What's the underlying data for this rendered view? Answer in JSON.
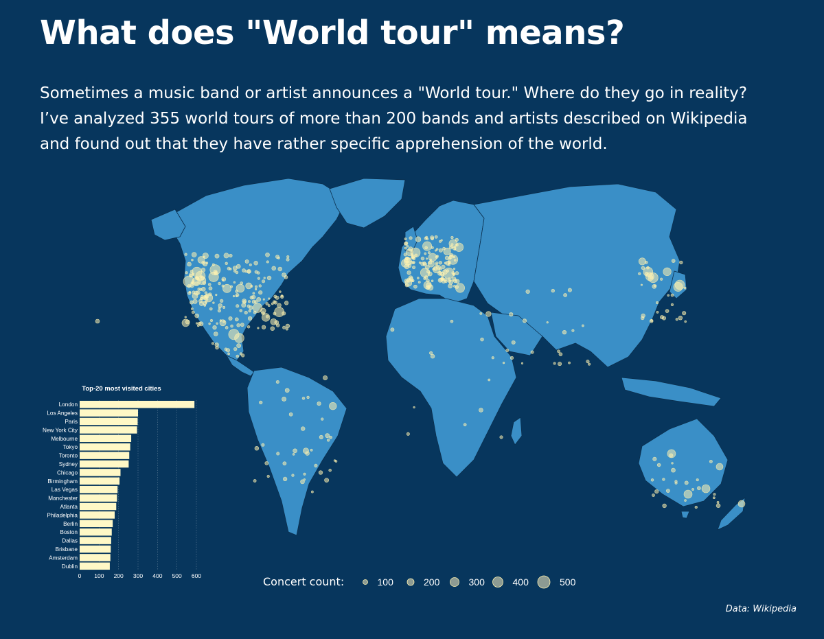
{
  "page": {
    "title": "What does \"World tour\" means?",
    "intro_lines": [
      "Sometimes a music band or artist announces a \"World tour.\" Where do they go in reality?",
      "I’ve analyzed 355 world tours of more than 200 bands and artists described on Wikipedia",
      "and found out that they have rather specific apprehension of the world."
    ],
    "source": "Data: Wikipedia"
  },
  "colors": {
    "background": "#07365d",
    "land": "#3a8fc7",
    "marker": "#fff3b0",
    "bar": "#fff8c6"
  },
  "legend": {
    "label": "Concert count:",
    "values": [
      100,
      200,
      300,
      400,
      500
    ],
    "value_labels": [
      "100",
      "200",
      "300",
      "400",
      "500"
    ]
  },
  "chart_data": {
    "type": "bar",
    "orientation": "horizontal",
    "title": "Top-20 most visited cities",
    "categories": [
      "London",
      "Los Angeles",
      "Paris",
      "New York City",
      "Melbourne",
      "Tokyo",
      "Toronto",
      "Sydney",
      "Chicago",
      "Birmingham",
      "Las Vegas",
      "Manchester",
      "Atlanta",
      "Philadelphia",
      "Berlin",
      "Boston",
      "Dallas",
      "Brisbane",
      "Amsterdam",
      "Dublin"
    ],
    "values": [
      590,
      300,
      298,
      295,
      265,
      260,
      255,
      252,
      210,
      205,
      195,
      192,
      188,
      180,
      170,
      165,
      162,
      160,
      158,
      155
    ],
    "xlim": [
      0,
      600
    ],
    "xticks": [
      0,
      100,
      200,
      300,
      400,
      500,
      600
    ],
    "xtick_labels": [
      "0",
      "100",
      "200",
      "300",
      "400",
      "500",
      "600"
    ],
    "grid": true
  },
  "map_data": {
    "type": "proportional-symbol-map",
    "symbol_measure": "Concert count",
    "dense_regions": [
      "North America",
      "Europe",
      "Japan",
      "Australia"
    ]
  }
}
